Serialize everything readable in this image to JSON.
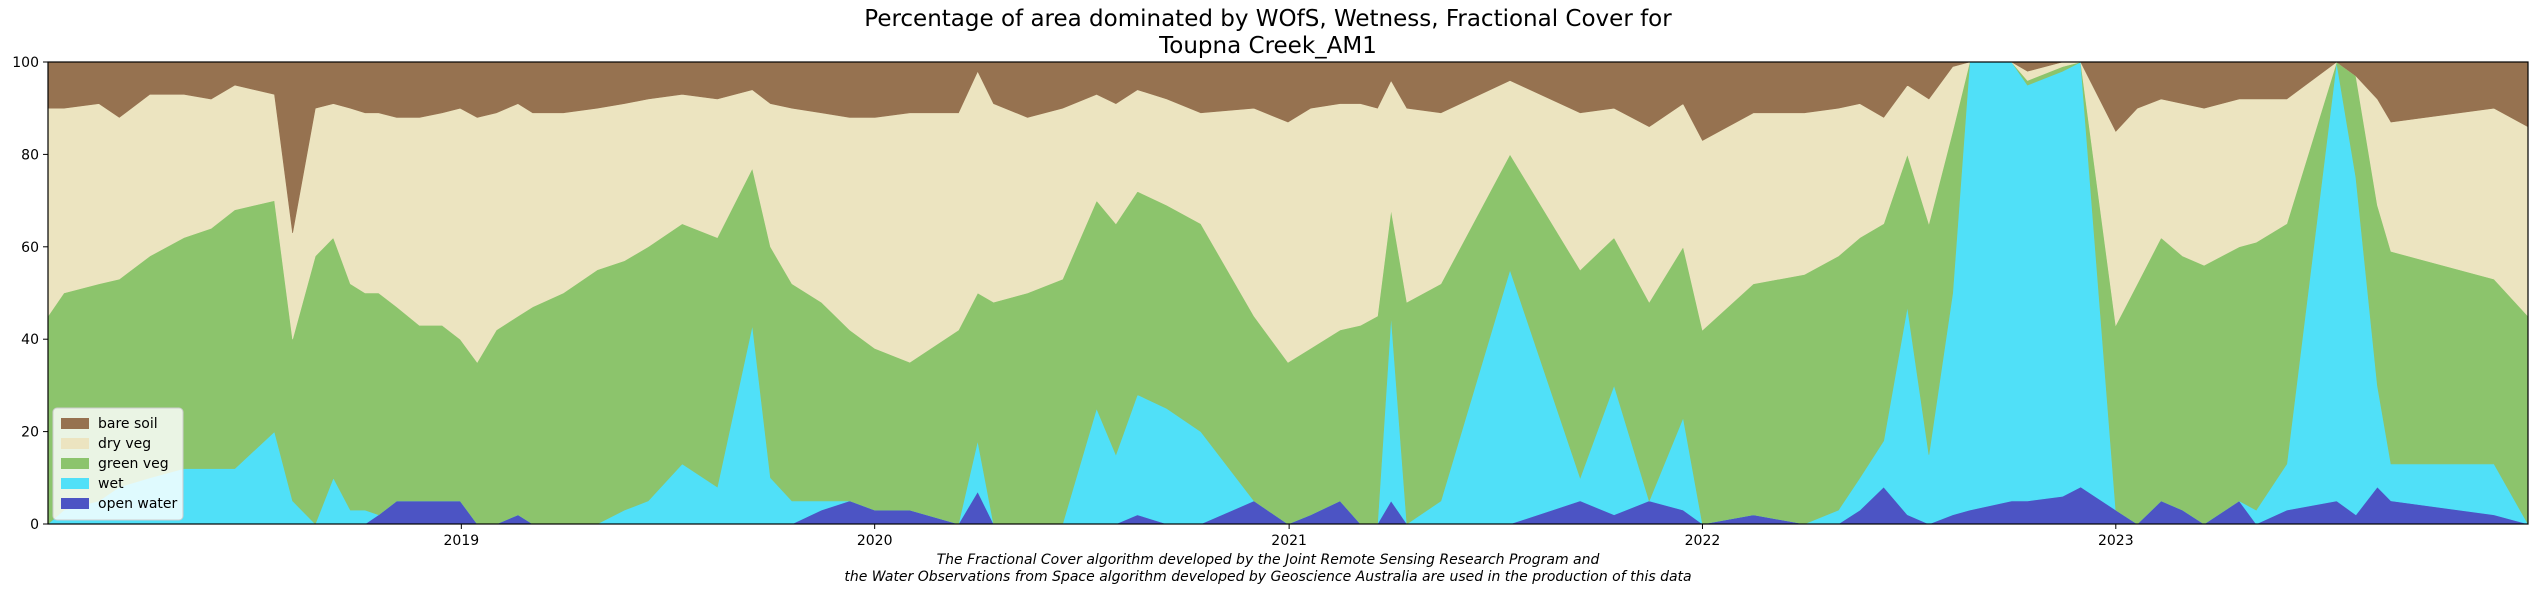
{
  "chart_data": {
    "type": "area",
    "stacked": true,
    "title_line1": "Percentage of area dominated by WOfS, Wetness, Fractional Cover for",
    "title_line2": "Toupna Creek_AM1",
    "ylim": [
      0,
      100
    ],
    "xlim": [
      "2018-01-01",
      "2023-12-31"
    ],
    "yticks": [
      "0",
      "20",
      "40",
      "60",
      "80",
      "100"
    ],
    "xticks": [
      {
        "label": "2019",
        "date": "2019-01-01"
      },
      {
        "label": "2020",
        "date": "2020-01-01"
      },
      {
        "label": "2021",
        "date": "2021-01-01"
      },
      {
        "label": "2022",
        "date": "2022-01-01"
      },
      {
        "label": "2023",
        "date": "2023-01-01"
      }
    ],
    "legend_position": "lower-left",
    "legend": [
      {
        "label": "bare soil",
        "color": "#967250"
      },
      {
        "label": "dry veg",
        "color": "#ece4c0"
      },
      {
        "label": "green veg",
        "color": "#8cc46c"
      },
      {
        "label": "wet",
        "color": "#50e0f8"
      },
      {
        "label": "open water",
        "color": "#4c54c4"
      }
    ],
    "series_order": [
      "open water",
      "wet",
      "green veg",
      "dry veg",
      "bare soil"
    ],
    "cumulative_boundaries": {
      "note_fields": [
        "date",
        "open_water_top",
        "wet_top",
        "green_top",
        "dry_top"
      ],
      "points": [
        [
          "2018-01-01",
          0,
          0,
          45,
          90
        ],
        [
          "2018-01-15",
          0,
          3,
          50,
          90
        ],
        [
          "2018-02-15",
          0,
          5,
          52,
          91
        ],
        [
          "2018-03-05",
          0,
          8,
          53,
          88
        ],
        [
          "2018-04-01",
          0,
          10,
          58,
          93
        ],
        [
          "2018-05-01",
          0,
          12,
          62,
          93
        ],
        [
          "2018-05-25",
          0,
          12,
          64,
          92
        ],
        [
          "2018-06-15",
          0,
          12,
          68,
          95
        ],
        [
          "2018-07-20",
          0,
          20,
          70,
          93
        ],
        [
          "2018-08-05",
          0,
          5,
          40,
          63
        ],
        [
          "2018-08-25",
          0,
          0,
          58,
          90
        ],
        [
          "2018-09-10",
          0,
          10,
          62,
          91
        ],
        [
          "2018-09-25",
          0,
          3,
          52,
          90
        ],
        [
          "2018-10-08",
          0,
          3,
          50,
          89
        ],
        [
          "2018-10-20",
          2,
          2,
          50,
          89
        ],
        [
          "2018-11-05",
          5,
          5,
          47,
          88
        ],
        [
          "2018-11-25",
          5,
          5,
          43,
          88
        ],
        [
          "2018-12-15",
          5,
          5,
          43,
          89
        ],
        [
          "2018-12-31",
          5,
          5,
          40,
          90
        ],
        [
          "2019-01-15",
          0,
          0,
          35,
          88
        ],
        [
          "2019-02-01",
          0,
          0,
          42,
          89
        ],
        [
          "2019-02-20",
          2,
          2,
          45,
          91
        ],
        [
          "2019-03-05",
          0,
          0,
          47,
          89
        ],
        [
          "2019-04-01",
          0,
          0,
          50,
          89
        ],
        [
          "2019-05-01",
          0,
          0,
          55,
          90
        ],
        [
          "2019-05-25",
          0,
          3,
          57,
          91
        ],
        [
          "2019-06-15",
          0,
          5,
          60,
          92
        ],
        [
          "2019-07-15",
          0,
          13,
          65,
          93
        ],
        [
          "2019-08-15",
          0,
          8,
          62,
          92
        ],
        [
          "2019-09-15",
          0,
          43,
          77,
          94
        ],
        [
          "2019-10-01",
          0,
          10,
          60,
          91
        ],
        [
          "2019-10-20",
          0,
          5,
          52,
          90
        ],
        [
          "2019-11-15",
          3,
          5,
          48,
          89
        ],
        [
          "2019-12-10",
          5,
          5,
          42,
          88
        ],
        [
          "2020-01-01",
          3,
          3,
          38,
          88
        ],
        [
          "2020-02-01",
          3,
          3,
          35,
          89
        ],
        [
          "2020-03-15",
          0,
          0,
          42,
          89
        ],
        [
          "2020-04-01",
          7,
          18,
          50,
          98
        ],
        [
          "2020-04-15",
          0,
          0,
          48,
          91
        ],
        [
          "2020-05-15",
          0,
          0,
          50,
          88
        ],
        [
          "2020-06-15",
          0,
          0,
          53,
          90
        ],
        [
          "2020-07-15",
          0,
          25,
          70,
          93
        ],
        [
          "2020-08-01",
          0,
          15,
          65,
          91
        ],
        [
          "2020-08-20",
          2,
          28,
          72,
          94
        ],
        [
          "2020-09-15",
          0,
          25,
          69,
          92
        ],
        [
          "2020-10-15",
          0,
          20,
          65,
          89
        ],
        [
          "2020-12-01",
          5,
          5,
          45,
          90
        ],
        [
          "2020-12-31",
          0,
          0,
          35,
          87
        ],
        [
          "2021-01-20",
          2,
          2,
          38,
          90
        ],
        [
          "2021-02-15",
          5,
          5,
          42,
          91
        ],
        [
          "2021-03-05",
          0,
          0,
          43,
          91
        ],
        [
          "2021-03-20",
          0,
          0,
          45,
          90
        ],
        [
          "2021-04-01",
          5,
          45,
          68,
          96
        ],
        [
          "2021-04-15",
          0,
          0,
          48,
          90
        ],
        [
          "2021-05-15",
          0,
          5,
          52,
          89
        ],
        [
          "2021-07-15",
          0,
          55,
          80,
          96
        ],
        [
          "2021-09-15",
          5,
          10,
          55,
          89
        ],
        [
          "2021-10-15",
          2,
          30,
          62,
          90
        ],
        [
          "2021-11-15",
          5,
          5,
          48,
          86
        ],
        [
          "2021-12-15",
          3,
          23,
          60,
          91
        ],
        [
          "2022-01-01",
          0,
          0,
          42,
          83
        ],
        [
          "2022-02-15",
          2,
          2,
          52,
          89
        ],
        [
          "2022-04-01",
          0,
          0,
          54,
          89
        ],
        [
          "2022-05-01",
          0,
          3,
          58,
          90
        ],
        [
          "2022-05-20",
          3,
          10,
          62,
          91
        ],
        [
          "2022-06-10",
          8,
          18,
          65,
          88
        ],
        [
          "2022-07-01",
          2,
          47,
          80,
          95
        ],
        [
          "2022-07-20",
          0,
          15,
          65,
          92
        ],
        [
          "2022-08-10",
          2,
          50,
          85,
          99
        ],
        [
          "2022-08-25",
          3,
          100,
          100,
          100
        ],
        [
          "2022-10-01",
          5,
          100,
          100,
          100
        ],
        [
          "2022-10-15",
          5,
          95,
          96,
          98
        ],
        [
          "2022-11-15",
          6,
          98,
          99,
          100
        ],
        [
          "2022-12-01",
          8,
          100,
          100,
          100
        ],
        [
          "2023-01-01",
          3,
          3,
          43,
          85
        ],
        [
          "2023-01-20",
          0,
          0,
          52,
          90
        ],
        [
          "2023-02-10",
          5,
          5,
          62,
          92
        ],
        [
          "2023-03-01",
          3,
          3,
          58,
          91
        ],
        [
          "2023-03-20",
          0,
          0,
          56,
          90
        ],
        [
          "2023-04-20",
          5,
          5,
          60,
          92
        ],
        [
          "2023-05-05",
          0,
          3,
          61,
          92
        ],
        [
          "2023-06-01",
          3,
          13,
          65,
          92
        ],
        [
          "2023-07-15",
          5,
          100,
          100,
          100
        ],
        [
          "2023-08-01",
          2,
          75,
          97,
          97
        ],
        [
          "2023-08-20",
          8,
          30,
          69,
          92
        ],
        [
          "2023-09-01",
          5,
          13,
          59,
          87
        ],
        [
          "2023-12-01",
          2,
          13,
          53,
          90
        ],
        [
          "2023-12-31",
          0,
          0,
          45,
          86
        ]
      ]
    },
    "caption_line1": "The Fractional Cover algorithm developed by the Joint Remote Sensing Research Program and",
    "caption_line2": "the Water Observations from Space algorithm developed by Geoscience Australia are used in the production of this data"
  }
}
